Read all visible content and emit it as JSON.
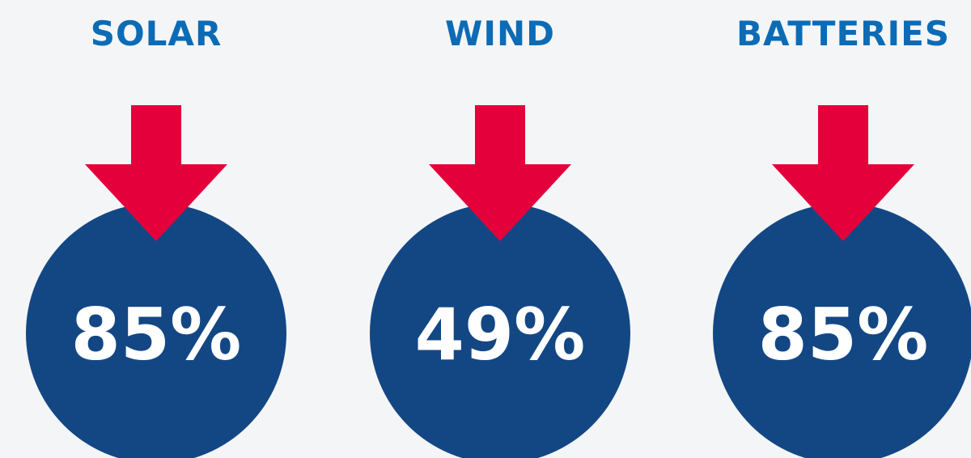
{
  "items": [
    {
      "label": "SOLAR",
      "value": "85%"
    },
    {
      "label": "WIND",
      "value": "49%"
    },
    {
      "label": "BATTERIES",
      "value": "85%"
    }
  ]
}
